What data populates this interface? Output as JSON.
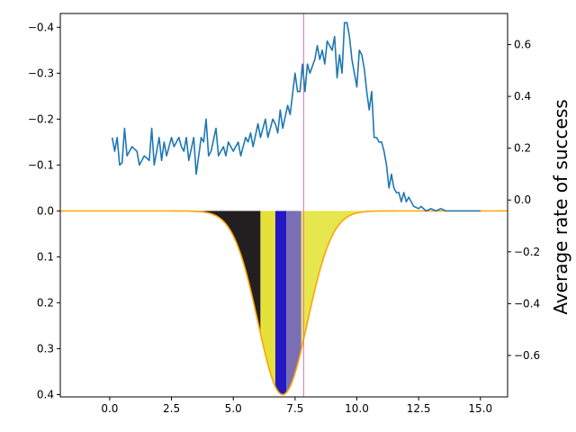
{
  "chart_data": {
    "type": "line",
    "ylabel_right": "Average rate of success",
    "x_axis": {
      "range": [
        -2,
        16.1
      ],
      "ticks": [
        0.0,
        2.5,
        5.0,
        7.5,
        10.0,
        12.5,
        15.0
      ],
      "tick_labels": [
        "0.0",
        "2.5",
        "5.0",
        "7.5",
        "10.0",
        "12.5",
        "15.0"
      ]
    },
    "left_axis": {
      "inverted": true,
      "range": [
        -0.43,
        0.405
      ],
      "ticks": [
        -0.4,
        -0.3,
        -0.2,
        -0.1,
        0.0,
        0.1,
        0.2,
        0.3,
        0.4
      ],
      "tick_labels": [
        "−0.4",
        "−0.3",
        "−0.2",
        "−0.1",
        "0.0",
        "0.1",
        "0.2",
        "0.3",
        "0.4"
      ]
    },
    "right_axis": {
      "range": [
        -0.76,
        0.72
      ],
      "ticks": [
        0.6,
        0.4,
        0.2,
        0.0,
        -0.2,
        -0.4,
        -0.6
      ],
      "tick_labels": [
        "0.6",
        "0.4",
        "0.2",
        "0.0",
        "−0.2",
        "−0.4",
        "−0.6"
      ]
    },
    "vertical_line": {
      "x": 7.85,
      "color": "#e377c2"
    },
    "success_series": {
      "axis": "left",
      "color": "#1f77b4",
      "points": [
        [
          0.1,
          -0.16
        ],
        [
          0.2,
          -0.13
        ],
        [
          0.3,
          -0.16
        ],
        [
          0.4,
          -0.1
        ],
        [
          0.5,
          -0.105
        ],
        [
          0.6,
          -0.18
        ],
        [
          0.7,
          -0.12
        ],
        [
          0.9,
          -0.14
        ],
        [
          1.1,
          -0.13
        ],
        [
          1.2,
          -0.1
        ],
        [
          1.4,
          -0.12
        ],
        [
          1.6,
          -0.11
        ],
        [
          1.7,
          -0.18
        ],
        [
          1.8,
          -0.1
        ],
        [
          2.0,
          -0.16
        ],
        [
          2.1,
          -0.11
        ],
        [
          2.2,
          -0.15
        ],
        [
          2.3,
          -0.12
        ],
        [
          2.5,
          -0.16
        ],
        [
          2.6,
          -0.14
        ],
        [
          2.8,
          -0.16
        ],
        [
          2.9,
          -0.14
        ],
        [
          3.0,
          -0.13
        ],
        [
          3.1,
          -0.16
        ],
        [
          3.2,
          -0.11
        ],
        [
          3.4,
          -0.16
        ],
        [
          3.5,
          -0.08
        ],
        [
          3.7,
          -0.16
        ],
        [
          3.8,
          -0.15
        ],
        [
          3.9,
          -0.2
        ],
        [
          4.0,
          -0.12
        ],
        [
          4.1,
          -0.13
        ],
        [
          4.3,
          -0.18
        ],
        [
          4.4,
          -0.12
        ],
        [
          4.6,
          -0.14
        ],
        [
          4.7,
          -0.12
        ],
        [
          4.8,
          -0.15
        ],
        [
          5.0,
          -0.13
        ],
        [
          5.2,
          -0.15
        ],
        [
          5.3,
          -0.12
        ],
        [
          5.5,
          -0.16
        ],
        [
          5.6,
          -0.15
        ],
        [
          5.7,
          -0.17
        ],
        [
          5.8,
          -0.14
        ],
        [
          6.0,
          -0.19
        ],
        [
          6.1,
          -0.16
        ],
        [
          6.3,
          -0.2
        ],
        [
          6.4,
          -0.16
        ],
        [
          6.6,
          -0.2
        ],
        [
          6.7,
          -0.19
        ],
        [
          6.8,
          -0.17
        ],
        [
          6.9,
          -0.22
        ],
        [
          7.0,
          -0.18
        ],
        [
          7.2,
          -0.23
        ],
        [
          7.3,
          -0.21
        ],
        [
          7.5,
          -0.3
        ],
        [
          7.6,
          -0.26
        ],
        [
          7.7,
          -0.26
        ],
        [
          7.8,
          -0.32
        ],
        [
          7.9,
          -0.26
        ],
        [
          8.0,
          -0.32
        ],
        [
          8.1,
          -0.3
        ],
        [
          8.3,
          -0.33
        ],
        [
          8.4,
          -0.36
        ],
        [
          8.5,
          -0.33
        ],
        [
          8.6,
          -0.35
        ],
        [
          8.7,
          -0.32
        ],
        [
          8.8,
          -0.37
        ],
        [
          9.0,
          -0.35
        ],
        [
          9.1,
          -0.38
        ],
        [
          9.2,
          -0.29
        ],
        [
          9.3,
          -0.34
        ],
        [
          9.4,
          -0.3
        ],
        [
          9.5,
          -0.41
        ],
        [
          9.6,
          -0.41
        ],
        [
          9.7,
          -0.38
        ],
        [
          9.8,
          -0.33
        ],
        [
          9.9,
          -0.3
        ],
        [
          10.0,
          -0.27
        ],
        [
          10.1,
          -0.35
        ],
        [
          10.2,
          -0.34
        ],
        [
          10.3,
          -0.31
        ],
        [
          10.4,
          -0.26
        ],
        [
          10.5,
          -0.22
        ],
        [
          10.6,
          -0.26
        ],
        [
          10.7,
          -0.16
        ],
        [
          10.8,
          -0.16
        ],
        [
          10.9,
          -0.15
        ],
        [
          11.0,
          -0.15
        ],
        [
          11.1,
          -0.13
        ],
        [
          11.2,
          -0.1
        ],
        [
          11.3,
          -0.05
        ],
        [
          11.4,
          -0.08
        ],
        [
          11.5,
          -0.05
        ],
        [
          11.6,
          -0.04
        ],
        [
          11.7,
          -0.04
        ],
        [
          11.8,
          -0.02
        ],
        [
          11.9,
          -0.04
        ],
        [
          12.0,
          -0.02
        ],
        [
          12.1,
          -0.03
        ],
        [
          12.2,
          -0.02
        ],
        [
          12.3,
          -0.01
        ],
        [
          12.5,
          -0.005
        ],
        [
          12.6,
          -0.01
        ],
        [
          12.8,
          0.0
        ],
        [
          13.0,
          -0.005
        ],
        [
          13.2,
          0.0
        ],
        [
          13.4,
          -0.005
        ],
        [
          13.6,
          0.0
        ],
        [
          14.0,
          0.0
        ],
        [
          14.5,
          0.0
        ],
        [
          15.0,
          0.0
        ]
      ]
    },
    "gaussian_curve": {
      "axis": "left",
      "color": "#ffa500",
      "mean": 7.0,
      "sigma": 1.0,
      "peak": 0.4,
      "x_from": -2,
      "x_to": 16.1
    },
    "bands": [
      {
        "from": 3.5,
        "to": 6.1,
        "color": "#231f20"
      },
      {
        "from": 6.1,
        "to": 6.7,
        "color": "#e6e03a"
      },
      {
        "from": 6.7,
        "to": 7.15,
        "color": "#2318c2"
      },
      {
        "from": 7.15,
        "to": 7.75,
        "color": "#7b6eb4"
      },
      {
        "from": 7.75,
        "to": 10.5,
        "color": "#e6e64e"
      }
    ]
  }
}
